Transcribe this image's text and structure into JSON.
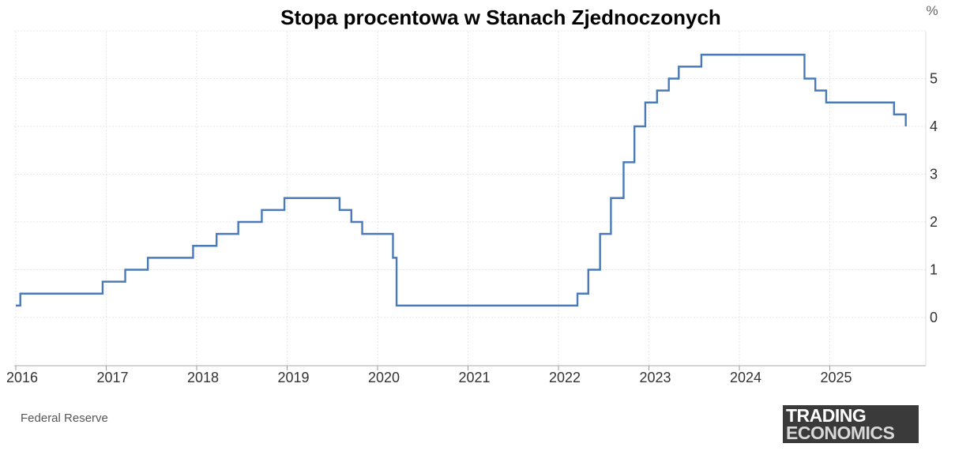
{
  "source": "Federal Reserve",
  "logo": {
    "line1": "TRADING",
    "line2": "ECONOMICS"
  },
  "chart_data": {
    "type": "line",
    "title": "Stopa procentowa  w Stanach Zjednoczonych",
    "unit": "%",
    "xlabel": "",
    "ylabel": "",
    "xlim": [
      2016.0,
      2026.0
    ],
    "ylim": [
      -1.0,
      6.0
    ],
    "grid": true,
    "y_axis_side": "right",
    "line_color": "#4a7ab7",
    "x_ticks": [
      {
        "value": 2016,
        "label": "2016"
      },
      {
        "value": 2017,
        "label": "2017"
      },
      {
        "value": 2018,
        "label": "2018"
      },
      {
        "value": 2019,
        "label": "2019"
      },
      {
        "value": 2020,
        "label": "2020"
      },
      {
        "value": 2021,
        "label": "2021"
      },
      {
        "value": 2022,
        "label": "2022"
      },
      {
        "value": 2023,
        "label": "2023"
      },
      {
        "value": 2024,
        "label": "2024"
      },
      {
        "value": 2025,
        "label": "2025"
      }
    ],
    "y_ticks": [
      {
        "value": 0,
        "label": "0"
      },
      {
        "value": 1,
        "label": "1"
      },
      {
        "value": 2,
        "label": "2"
      },
      {
        "value": 3,
        "label": "3"
      },
      {
        "value": 4,
        "label": "4"
      },
      {
        "value": 5,
        "label": "5"
      }
    ],
    "series": [
      {
        "step": true,
        "points": [
          [
            2016.0,
            0.25
          ],
          [
            2016.05,
            0.5
          ],
          [
            2016.96,
            0.75
          ],
          [
            2017.21,
            1.0
          ],
          [
            2017.46,
            1.25
          ],
          [
            2017.96,
            1.5
          ],
          [
            2018.22,
            1.75
          ],
          [
            2018.46,
            2.0
          ],
          [
            2018.72,
            2.25
          ],
          [
            2018.97,
            2.5
          ],
          [
            2019.58,
            2.25
          ],
          [
            2019.71,
            2.0
          ],
          [
            2019.83,
            1.75
          ],
          [
            2020.17,
            1.25
          ],
          [
            2020.21,
            0.25
          ],
          [
            2022.21,
            0.5
          ],
          [
            2022.33,
            1.0
          ],
          [
            2022.46,
            1.75
          ],
          [
            2022.58,
            2.5
          ],
          [
            2022.72,
            3.25
          ],
          [
            2022.84,
            4.0
          ],
          [
            2022.96,
            4.5
          ],
          [
            2023.09,
            4.75
          ],
          [
            2023.22,
            5.0
          ],
          [
            2023.33,
            5.25
          ],
          [
            2023.58,
            5.5
          ],
          [
            2024.72,
            5.0
          ],
          [
            2024.84,
            4.75
          ],
          [
            2024.96,
            4.5
          ],
          [
            2025.71,
            4.25
          ],
          [
            2025.84,
            4.0
          ],
          [
            2025.84,
            4.0
          ]
        ]
      }
    ]
  }
}
